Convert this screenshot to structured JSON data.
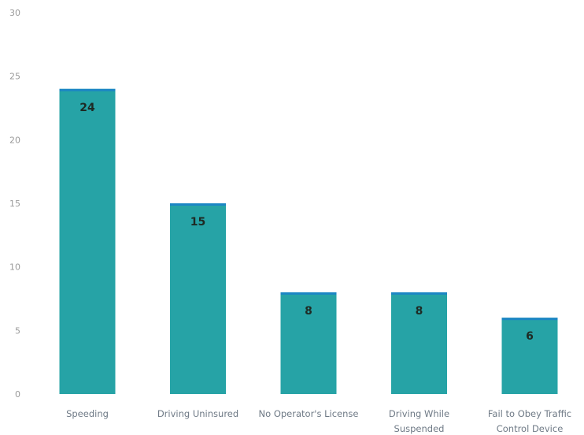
{
  "chart_data": {
    "type": "bar",
    "categories": [
      [
        "Speeding"
      ],
      [
        "Driving Uninsured"
      ],
      [
        "No Operator's License"
      ],
      [
        "Driving While",
        "Suspended"
      ],
      [
        "Fail to Obey Traffic",
        "Control Device"
      ]
    ],
    "values": [
      24,
      15,
      8,
      8,
      6
    ],
    "data_labels": [
      "24",
      "15",
      "8",
      "8",
      "6"
    ],
    "yticks": [
      "0",
      "5",
      "10",
      "15",
      "20",
      "25",
      "30"
    ],
    "ylim": [
      0,
      30
    ],
    "grid": false,
    "bar_color": "#26a3a6",
    "bar_top_color": "#1c86c4"
  }
}
